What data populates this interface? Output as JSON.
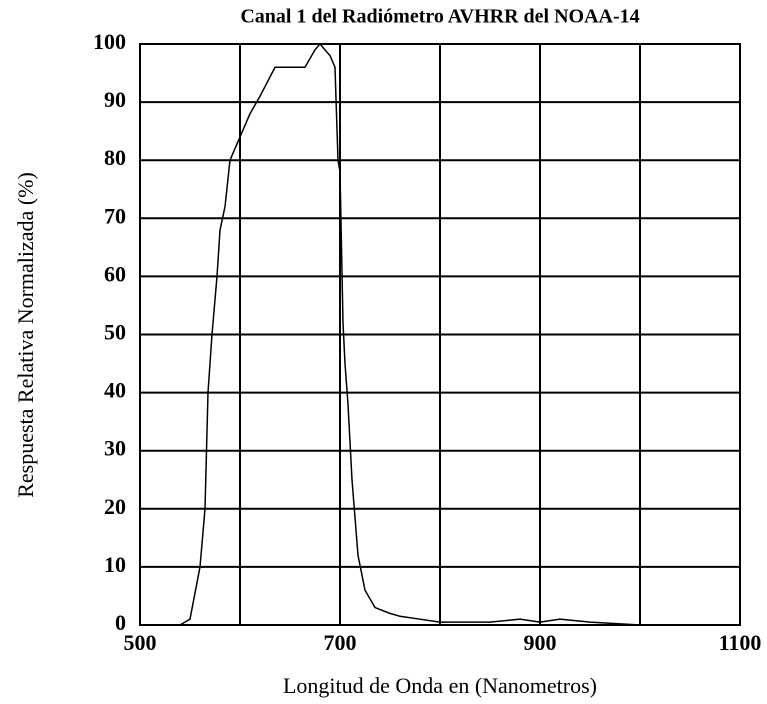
{
  "chart_data": {
    "type": "line",
    "title": "Canal 1 del Radiómetro AVHRR del NOAA-14",
    "x_label": "Longitud de Onda en (Nanometros)",
    "y_label": "Respuesta Relativa Normalizada (%)",
    "x": [
      500,
      540,
      550,
      560,
      565,
      568,
      572,
      577,
      580,
      585,
      590,
      600,
      610,
      620,
      635,
      650,
      665,
      675,
      680,
      690,
      695,
      698,
      700,
      703,
      705,
      708,
      712,
      718,
      725,
      735,
      750,
      760,
      780,
      800,
      850,
      880,
      900,
      920,
      950,
      1000,
      1100
    ],
    "series": [
      {
        "name": "Canal 1",
        "color": "#000000",
        "values": [
          0,
          0,
          1,
          10,
          20,
          40,
          50,
          60,
          68,
          72,
          80,
          84,
          88,
          91,
          96,
          96,
          96,
          99,
          100,
          98,
          96,
          80,
          78,
          52,
          45,
          38,
          25,
          12,
          6,
          3,
          2,
          1.5,
          1,
          0.5,
          0.5,
          1,
          0.5,
          1,
          0.5,
          0,
          0
        ]
      }
    ],
    "xlim": [
      500,
      1100
    ],
    "xticks": [
      500,
      700,
      900,
      1100
    ],
    "xminor": [
      600,
      800,
      1000
    ],
    "ylim": [
      0,
      100
    ],
    "yticks": [
      0,
      10,
      20,
      30,
      40,
      50,
      60,
      70,
      80,
      90,
      100
    ],
    "grid": true
  }
}
